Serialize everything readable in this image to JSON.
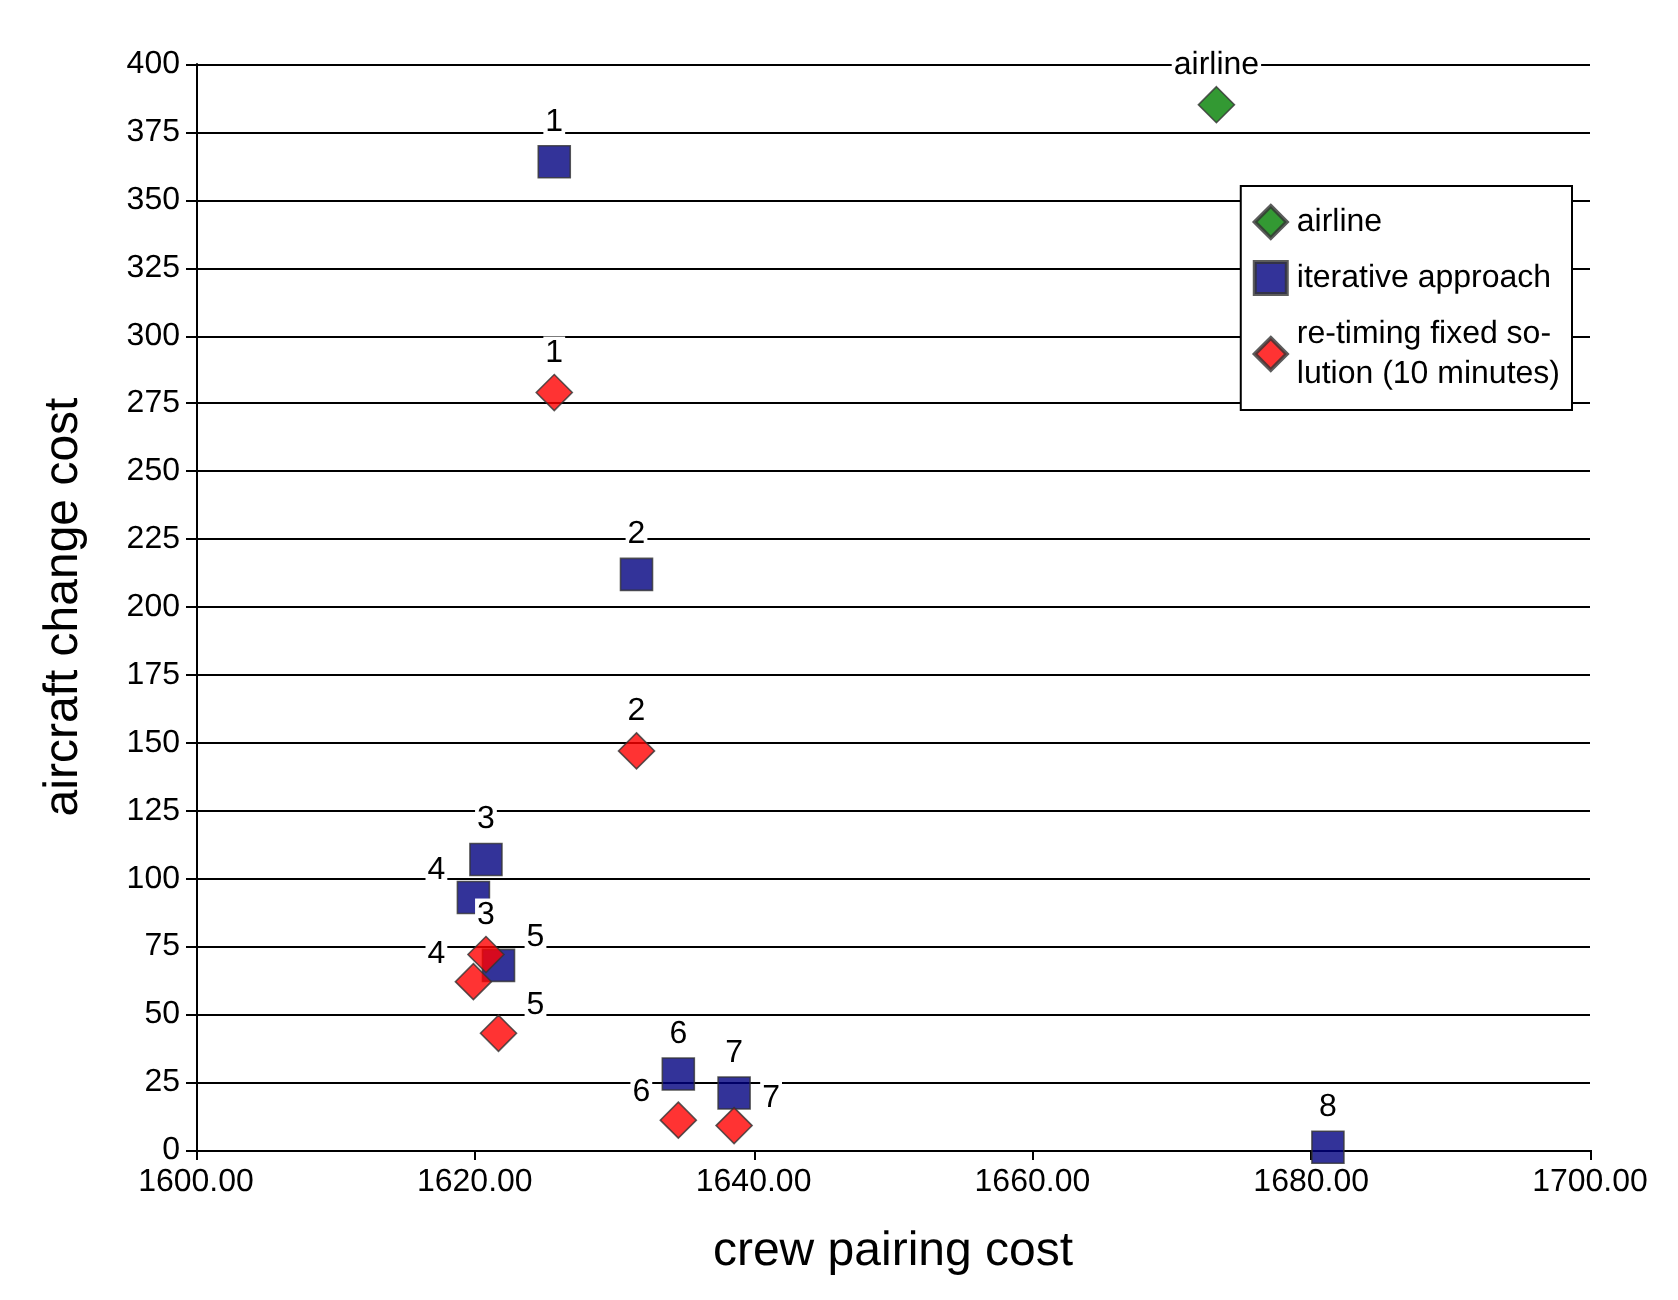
{
  "chart_data": {
    "type": "scatter",
    "xlabel": "crew pairing cost",
    "ylabel": "aircraft change cost",
    "xlim": [
      1600,
      1700
    ],
    "xticks": [
      {
        "value": 1600,
        "label": "1600.00"
      },
      {
        "value": 1620,
        "label": "1620.00"
      },
      {
        "value": 1640,
        "label": "1640.00"
      },
      {
        "value": 1660,
        "label": "1660.00"
      },
      {
        "value": 1680,
        "label": "1680.00"
      },
      {
        "value": 1700,
        "label": "1700.00"
      }
    ],
    "ylim": [
      0,
      400
    ],
    "yticks": [
      0,
      25,
      50,
      75,
      100,
      125,
      150,
      175,
      200,
      225,
      250,
      275,
      300,
      325,
      350,
      375,
      400
    ],
    "grid": "y",
    "legend": "top right",
    "series": [
      {
        "name": "airline",
        "color": "#008000",
        "marker": "diamond",
        "x": [
          1673.2
        ],
        "values": [
          385
        ]
      },
      {
        "name": "iterative approach",
        "color": "#000080",
        "marker": "square",
        "x": [
          1625.7,
          1631.6,
          1620.8,
          1619.9,
          1621.7,
          1634.6,
          1638.6,
          1681.2
        ],
        "values": [
          364,
          212,
          107,
          93,
          68,
          28,
          21,
          1
        ]
      },
      {
        "name": "re-timing fixed so-\nlution (10 minutes)",
        "color": "#ff0000",
        "marker": "diamond",
        "x": [
          1625.7,
          1631.6,
          1620.8,
          1619.9,
          1621.7,
          1634.6,
          1638.6
        ],
        "values": [
          279,
          147,
          72,
          62,
          43,
          11,
          9
        ]
      }
    ],
    "annotations": [
      {
        "text": "airline",
        "x": 1673.2,
        "y": 385
      },
      {
        "text": "1",
        "x": 1625.7,
        "y": 364
      },
      {
        "text": "2",
        "x": 1631.6,
        "y": 212
      },
      {
        "text": "3",
        "x": 1620.8,
        "y": 107
      },
      {
        "text": "4",
        "x": 1619.9,
        "y": 93
      },
      {
        "text": "5",
        "x": 1621.7,
        "y": 68
      },
      {
        "text": "6",
        "x": 1634.6,
        "y": 28
      },
      {
        "text": "7",
        "x": 1638.6,
        "y": 21
      },
      {
        "text": "8",
        "x": 1681.2,
        "y": 1
      },
      {
        "text": "1",
        "x": 1625.7,
        "y": 279
      },
      {
        "text": "2",
        "x": 1631.6,
        "y": 147
      },
      {
        "text": "3",
        "x": 1620.8,
        "y": 72
      },
      {
        "text": "4",
        "x": 1619.9,
        "y": 62
      },
      {
        "text": "5",
        "x": 1621.7,
        "y": 43
      },
      {
        "text": "6",
        "x": 1634.6,
        "y": 11
      },
      {
        "text": "7",
        "x": 1638.6,
        "y": 9
      }
    ]
  }
}
